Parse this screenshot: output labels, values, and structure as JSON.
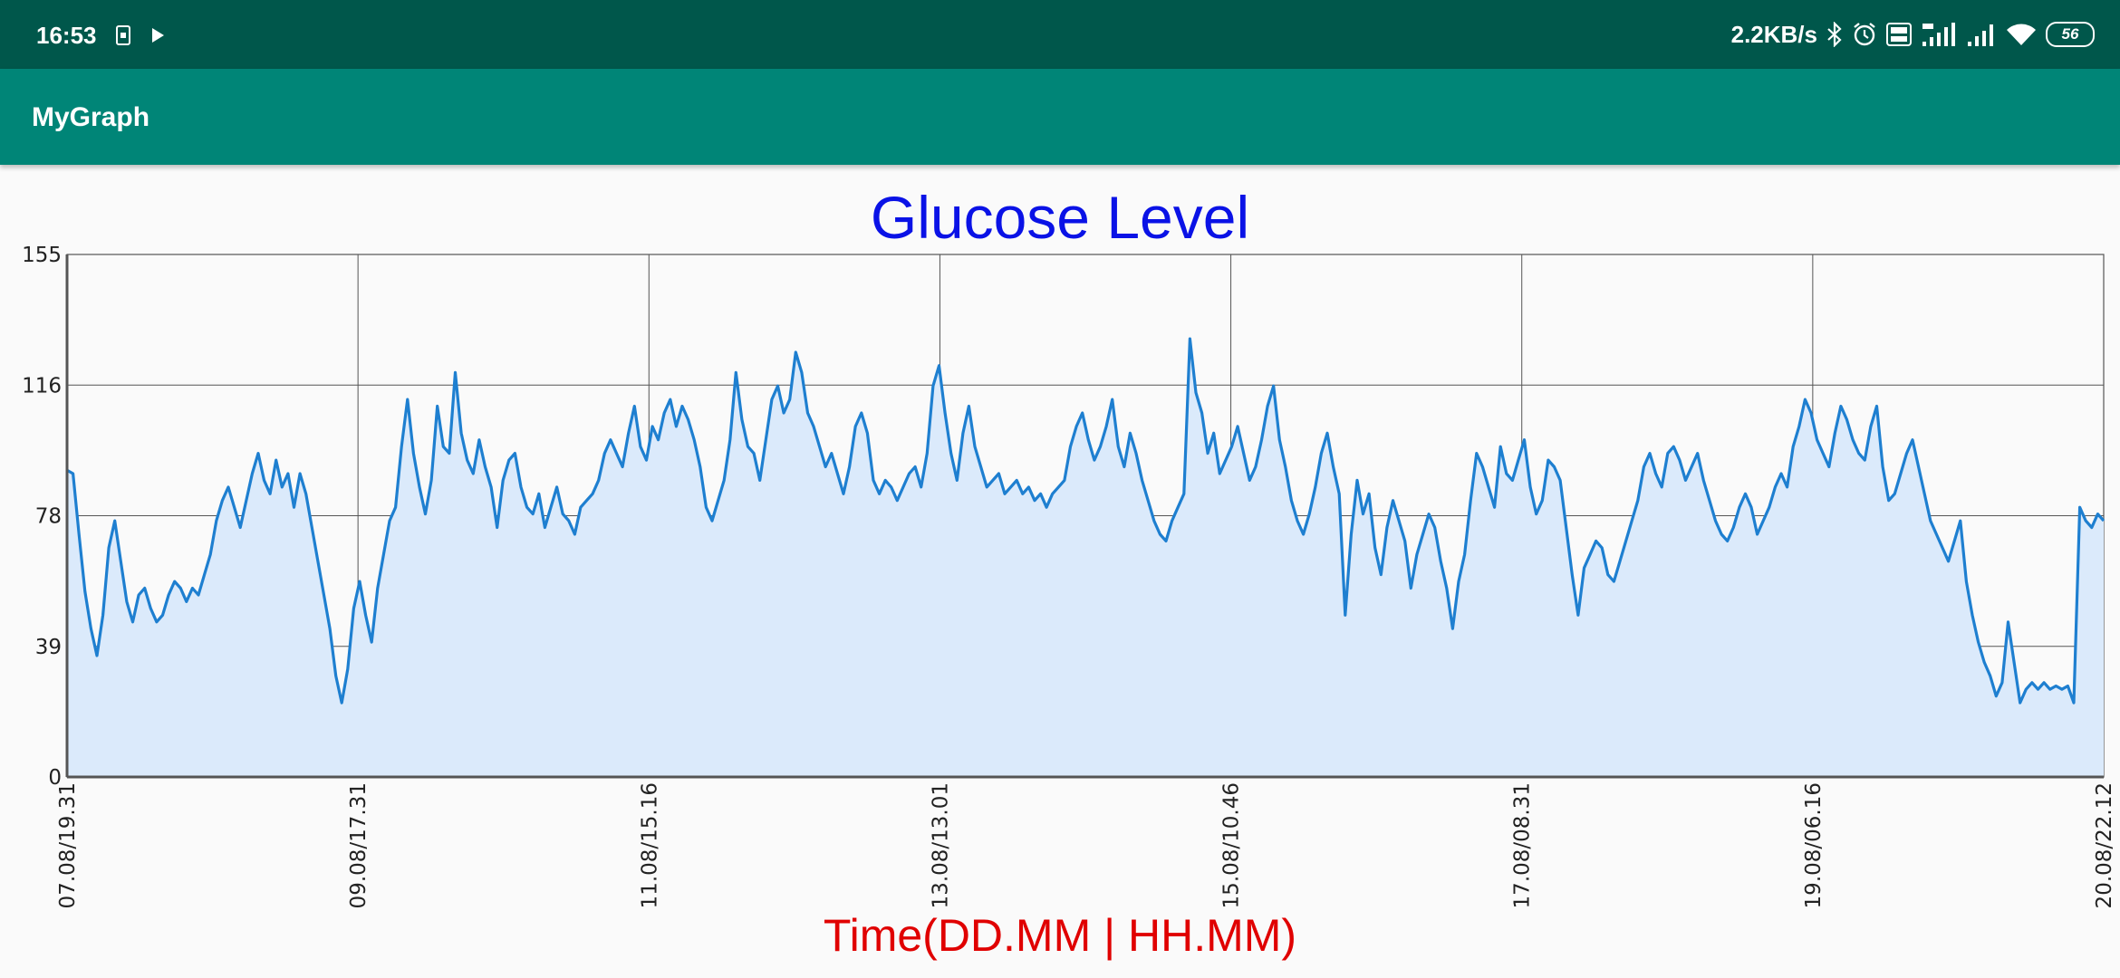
{
  "status_bar": {
    "time": "16:53",
    "network_speed": "2.2KB/s",
    "battery": "56",
    "icons": [
      "sim-icon",
      "play-icon",
      "bluetooth-icon",
      "alarm-icon",
      "volte-icon",
      "signal-4g-icon",
      "signal-icon",
      "wifi-icon",
      "battery-icon"
    ]
  },
  "app_bar": {
    "title": "MyGraph"
  },
  "colors": {
    "status_bar": "#00574b",
    "app_bar": "#008577",
    "title": "#0a12e6",
    "x_axis_title": "#e00000",
    "line": "#1e7fd0",
    "fill": "#dbeafb"
  },
  "chart_data": {
    "type": "area",
    "title": "Glucose Level",
    "xlabel": "Time(DD.MM | HH.MM)",
    "ylabel": "",
    "ylim": [
      0,
      155
    ],
    "y_ticks": [
      "0",
      "39",
      "78",
      "116",
      "155"
    ],
    "x_ticks": [
      "07.08/19.31",
      "09.08/17.31",
      "11.08/15.16",
      "13.08/13.01",
      "15.08/10.46",
      "17.08/08.31",
      "19.08/06.16",
      "20.08/22.12"
    ],
    "grid": true,
    "series": [
      {
        "values": [
          91,
          90,
          72,
          55,
          44,
          36,
          48,
          68,
          76,
          64,
          52,
          46,
          54,
          56,
          50,
          46,
          48,
          54,
          58,
          56,
          52,
          56,
          54,
          60,
          66,
          76,
          82,
          86,
          80,
          74,
          82,
          90,
          96,
          88,
          84,
          94,
          86,
          90,
          80,
          90,
          84,
          74,
          64,
          54,
          44,
          30,
          22,
          32,
          50,
          58,
          48,
          40,
          56,
          66,
          76,
          80,
          98,
          112,
          96,
          86,
          78,
          88,
          110,
          98,
          96,
          120,
          102,
          94,
          90,
          100,
          92,
          86,
          74,
          88,
          94,
          96,
          86,
          80,
          78,
          84,
          74,
          80,
          86,
          78,
          76,
          72,
          80,
          82,
          84,
          88,
          96,
          100,
          96,
          92,
          102,
          110,
          98,
          94,
          104,
          100,
          108,
          112,
          104,
          110,
          106,
          100,
          92,
          80,
          76,
          82,
          88,
          100,
          120,
          106,
          98,
          96,
          88,
          100,
          112,
          116,
          108,
          112,
          126,
          120,
          108,
          104,
          98,
          92,
          96,
          90,
          84,
          92,
          104,
          108,
          102,
          88,
          84,
          88,
          86,
          82,
          86,
          90,
          92,
          86,
          96,
          116,
          122,
          108,
          96,
          88,
          102,
          110,
          98,
          92,
          86,
          88,
          90,
          84,
          86,
          88,
          84,
          86,
          82,
          84,
          80,
          84,
          86,
          88,
          98,
          104,
          108,
          100,
          94,
          98,
          104,
          112,
          98,
          92,
          102,
          96,
          88,
          82,
          76,
          72,
          70,
          76,
          80,
          84,
          130,
          114,
          108,
          96,
          102,
          90,
          94,
          98,
          104,
          96,
          88,
          92,
          100,
          110,
          116,
          100,
          92,
          82,
          76,
          72,
          78,
          86,
          96,
          102,
          92,
          84,
          48,
          72,
          88,
          78,
          84,
          68,
          60,
          74,
          82,
          76,
          70,
          56,
          66,
          72,
          78,
          74,
          64,
          56,
          44,
          58,
          66,
          82,
          96,
          92,
          86,
          80,
          98,
          90,
          88,
          94,
          100,
          86,
          78,
          82,
          94,
          92,
          88,
          74,
          60,
          48,
          62,
          66,
          70,
          68,
          60,
          58,
          64,
          70,
          76,
          82,
          92,
          96,
          90,
          86,
          96,
          98,
          94,
          88,
          92,
          96,
          88,
          82,
          76,
          72,
          70,
          74,
          80,
          84,
          80,
          72,
          76,
          80,
          86,
          90,
          86,
          98,
          104,
          112,
          108,
          100,
          96,
          92,
          102,
          110,
          106,
          100,
          96,
          94,
          104,
          110,
          92,
          82,
          84,
          90,
          96,
          100,
          92,
          84,
          76,
          72,
          68,
          64,
          70,
          76,
          58,
          48,
          40,
          34,
          30,
          24,
          28,
          46,
          34,
          22,
          26,
          28,
          26,
          28,
          26,
          27,
          26,
          27,
          22,
          80,
          76,
          74,
          78,
          76
        ]
      }
    ]
  }
}
